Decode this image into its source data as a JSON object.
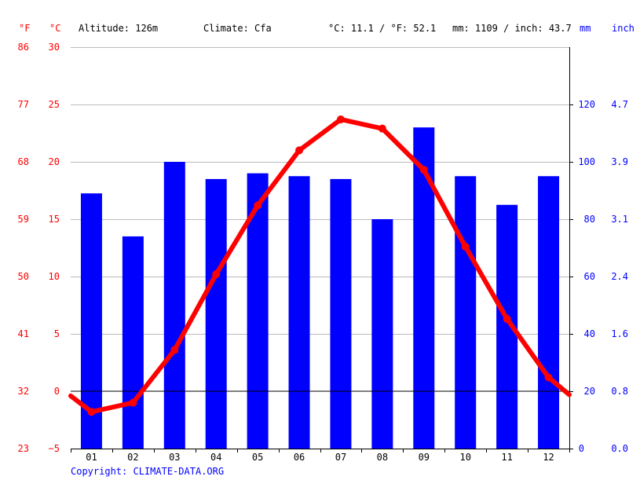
{
  "header": {
    "unit_f": "°F",
    "unit_c": "°C",
    "altitude": "Altitude: 126m",
    "climate": "Climate: Cfa",
    "temp_avg": "°C: 11.1 / °F: 52.1",
    "precip_avg": "mm: 1109 / inch: 43.7",
    "unit_mm": "mm",
    "unit_inch": "inch"
  },
  "footer": {
    "copyright": "Copyright: CLIMATE-DATA.ORG"
  },
  "chart_data": {
    "type": "bar+line",
    "categories": [
      "01",
      "02",
      "03",
      "04",
      "05",
      "06",
      "07",
      "08",
      "09",
      "10",
      "11",
      "12"
    ],
    "series": [
      {
        "type": "bar",
        "axis": "right",
        "values": [
          89,
          74,
          100,
          94,
          96,
          95,
          94,
          80,
          112,
          95,
          85,
          95
        ]
      },
      {
        "type": "line",
        "axis": "left",
        "values": [
          -1.8,
          -1.0,
          3.6,
          10.2,
          16.2,
          21.0,
          23.7,
          22.9,
          19.3,
          12.6,
          6.3,
          1.2
        ]
      }
    ],
    "left_axis_c": {
      "ticks": [
        -5,
        0,
        5,
        10,
        15,
        20,
        25,
        30
      ],
      "range": [
        -5,
        30
      ]
    },
    "left_axis_f": {
      "ticks": [
        "23",
        "32",
        "41",
        "50",
        "59",
        "68",
        "77",
        "86"
      ]
    },
    "right_axis_mm": {
      "ticks": [
        "0",
        "20",
        "40",
        "60",
        "80",
        "100",
        "120"
      ],
      "range": [
        0,
        140
      ]
    },
    "right_axis_inch": {
      "ticks": [
        "0.0",
        "0.8",
        "1.6",
        "2.4",
        "3.1",
        "3.9",
        "4.7"
      ]
    },
    "line_start_c": -0.4,
    "line_end_c": -0.3,
    "colors": {
      "temperature": "#ff0000",
      "precipitation": "#0000ff",
      "grid": "#bbbbbb",
      "zero_line": "#000000"
    }
  }
}
